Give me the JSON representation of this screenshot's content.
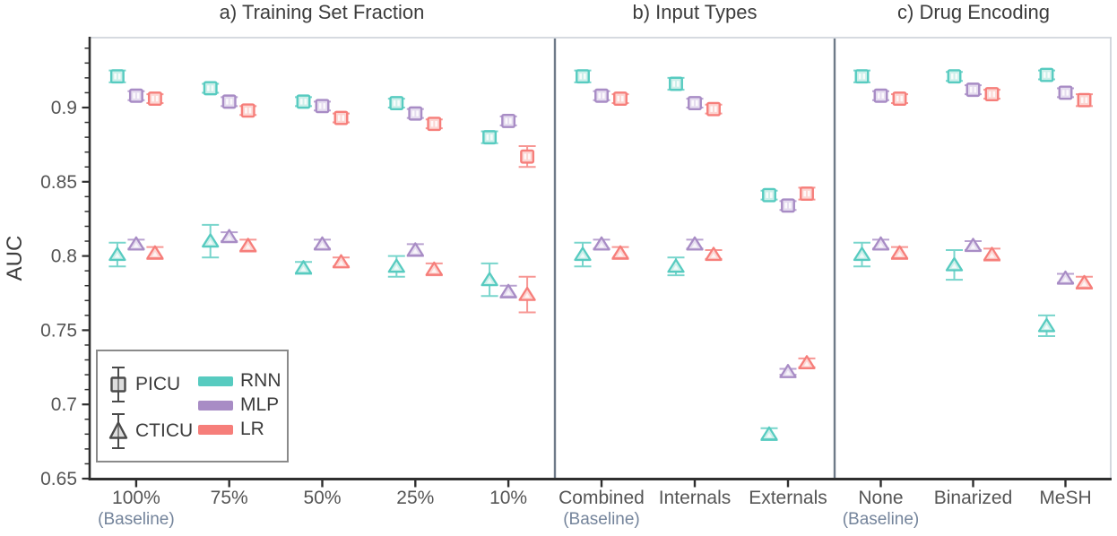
{
  "chart_data": {
    "type": "scatter",
    "subtype": "errorbar-scatter",
    "ylabel": "AUC",
    "ylim": [
      0.65,
      0.947
    ],
    "grid": false,
    "yticks": [
      {
        "value": 0.9,
        "label": "0.9"
      },
      {
        "value": 0.85,
        "label": "0.85"
      },
      {
        "value": 0.8,
        "label": "0.8"
      },
      {
        "value": 0.75,
        "label": "0.75"
      },
      {
        "value": 0.7,
        "label": "0.7"
      },
      {
        "value": 0.65,
        "label": "0.65"
      }
    ],
    "minor_tick_step": 0.01,
    "models": [
      {
        "name": "RNN",
        "color": "#57CBC0",
        "fill": "#CDEFEA"
      },
      {
        "name": "MLP",
        "color": "#A88CC5",
        "fill": "#E5DCEF"
      },
      {
        "name": "LR",
        "color": "#F67E7A",
        "fill": "#FCD6D3"
      }
    ],
    "cohorts": [
      {
        "name": "PICU",
        "marker": "square"
      },
      {
        "name": "CTICU",
        "marker": "triangle"
      }
    ],
    "panels": [
      {
        "title": "a) Training Set Fraction",
        "categories": [
          "100%",
          "75%",
          "50%",
          "25%",
          "10%"
        ],
        "baseline_note": "(Baseline)",
        "baseline_index": 0,
        "series": [
          {
            "cohort": "PICU",
            "model": "RNN",
            "values": [
              0.921,
              0.913,
              0.904,
              0.903,
              0.88
            ],
            "errors": [
              0.004,
              0.003,
              0.003,
              0.003,
              0.004
            ]
          },
          {
            "cohort": "PICU",
            "model": "MLP",
            "values": [
              0.908,
              0.904,
              0.901,
              0.896,
              0.891
            ],
            "errors": [
              0.003,
              0.003,
              0.003,
              0.003,
              0.003
            ]
          },
          {
            "cohort": "PICU",
            "model": "LR",
            "values": [
              0.906,
              0.898,
              0.893,
              0.889,
              0.867
            ],
            "errors": [
              0.003,
              0.003,
              0.003,
              0.003,
              0.007
            ]
          },
          {
            "cohort": "CTICU",
            "model": "RNN",
            "values": [
              0.801,
              0.81,
              0.792,
              0.793,
              0.784
            ],
            "errors": [
              0.008,
              0.011,
              0.004,
              0.007,
              0.011
            ]
          },
          {
            "cohort": "CTICU",
            "model": "MLP",
            "values": [
              0.808,
              0.813,
              0.808,
              0.804,
              0.776
            ],
            "errors": [
              0.003,
              0.003,
              0.003,
              0.004,
              0.004
            ]
          },
          {
            "cohort": "CTICU",
            "model": "LR",
            "values": [
              0.802,
              0.807,
              0.796,
              0.791,
              0.774
            ],
            "errors": [
              0.004,
              0.004,
              0.003,
              0.004,
              0.012
            ]
          }
        ]
      },
      {
        "title": "b) Input Types",
        "categories": [
          "Combined",
          "Internals",
          "Externals"
        ],
        "baseline_note": "(Baseline)",
        "baseline_index": 0,
        "series": [
          {
            "cohort": "PICU",
            "model": "RNN",
            "values": [
              0.921,
              0.916,
              0.841
            ],
            "errors": [
              0.004,
              0.004,
              0.003
            ]
          },
          {
            "cohort": "PICU",
            "model": "MLP",
            "values": [
              0.908,
              0.903,
              0.834
            ],
            "errors": [
              0.003,
              0.003,
              0.003
            ]
          },
          {
            "cohort": "PICU",
            "model": "LR",
            "values": [
              0.906,
              0.899,
              0.842
            ],
            "errors": [
              0.003,
              0.003,
              0.004
            ]
          },
          {
            "cohort": "CTICU",
            "model": "RNN",
            "values": [
              0.801,
              0.793,
              0.68
            ],
            "errors": [
              0.008,
              0.006,
              0.004
            ]
          },
          {
            "cohort": "CTICU",
            "model": "MLP",
            "values": [
              0.808,
              0.808,
              0.722
            ],
            "errors": [
              0.003,
              0.003,
              0.002
            ]
          },
          {
            "cohort": "CTICU",
            "model": "LR",
            "values": [
              0.802,
              0.801,
              0.728
            ],
            "errors": [
              0.004,
              0.003,
              0.003
            ]
          }
        ]
      },
      {
        "title": "c) Drug Encoding",
        "categories": [
          "None",
          "Binarized",
          "MeSH"
        ],
        "baseline_note": "(Baseline)",
        "baseline_index": 0,
        "series": [
          {
            "cohort": "PICU",
            "model": "RNN",
            "values": [
              0.921,
              0.921,
              0.922
            ],
            "errors": [
              0.004,
              0.003,
              0.003
            ]
          },
          {
            "cohort": "PICU",
            "model": "MLP",
            "values": [
              0.908,
              0.912,
              0.91
            ],
            "errors": [
              0.003,
              0.003,
              0.003
            ]
          },
          {
            "cohort": "PICU",
            "model": "LR",
            "values": [
              0.906,
              0.909,
              0.905
            ],
            "errors": [
              0.003,
              0.003,
              0.004
            ]
          },
          {
            "cohort": "CTICU",
            "model": "RNN",
            "values": [
              0.801,
              0.794,
              0.753
            ],
            "errors": [
              0.008,
              0.01,
              0.007
            ]
          },
          {
            "cohort": "CTICU",
            "model": "MLP",
            "values": [
              0.808,
              0.807,
              0.785
            ],
            "errors": [
              0.003,
              0.003,
              0.003
            ]
          },
          {
            "cohort": "CTICU",
            "model": "LR",
            "values": [
              0.802,
              0.801,
              0.782
            ],
            "errors": [
              0.004,
              0.004,
              0.004
            ]
          }
        ]
      }
    ],
    "legend": {
      "cohorts": [
        {
          "label": "PICU"
        },
        {
          "label": "CTICU"
        }
      ],
      "models": [
        {
          "label": "RNN"
        },
        {
          "label": "MLP"
        },
        {
          "label": "LR"
        }
      ],
      "position": "lower-left"
    },
    "style": {
      "axis_color": "#2F2F2F",
      "frame_color": "#C9CED6",
      "divider_color": "#6E7A88",
      "tick_label_color": "#555555",
      "title_color": "#3D3D3D",
      "baseline_label_color": "#74849B",
      "legend_border_color": "#8A8A8A",
      "legend_marker_color": "#4A4A4A"
    }
  }
}
